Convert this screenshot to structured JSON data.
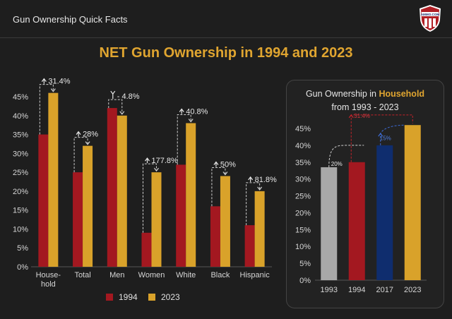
{
  "header": {
    "title": "Gun Ownership Quick Facts",
    "logo_text": "AMMO.COM"
  },
  "colors": {
    "c1994": "#a31820",
    "c2023": "#d9a22a",
    "c1993": "#a8a8a8",
    "c2017": "#0f2d6e",
    "accent": "#e0a530"
  },
  "chart_data": [
    {
      "type": "bar",
      "title": "NET Gun Ownership in 1994 and 2023",
      "categories": [
        "House-\nhold",
        "Total",
        "Men",
        "Women",
        "White",
        "Black",
        "Hispanic"
      ],
      "series": [
        {
          "name": "1994",
          "values": [
            35,
            25,
            42,
            9,
            27,
            16,
            11
          ]
        },
        {
          "name": "2023",
          "values": [
            46,
            32,
            40,
            25,
            38,
            24,
            20
          ]
        }
      ],
      "annotations": [
        "31.4%",
        "28%",
        "- 4.8%",
        "177.8%",
        "40.8%",
        "50%",
        "81.8%"
      ],
      "annotation_arrows": [
        "up",
        "up",
        "down",
        "up",
        "up",
        "up",
        "up"
      ],
      "ylim": [
        0,
        45
      ],
      "yticks": [
        "0%",
        "5%",
        "10%",
        "15%",
        "20%",
        "25%",
        "30%",
        "35%",
        "40%",
        "45%"
      ],
      "legend": [
        "1994",
        "2023"
      ],
      "legend_position": "bottom"
    },
    {
      "type": "bar",
      "title": "Gun Ownership in Household",
      "title_prefix": "Gun Ownership in ",
      "title_highlight": "Household",
      "subtitle": "from 1993 - 2023",
      "categories": [
        "1993",
        "1994",
        "2017",
        "2023"
      ],
      "values": [
        33.5,
        35,
        40,
        46
      ],
      "annotations": [
        "20%",
        "31.4%",
        "15%"
      ],
      "ylim": [
        0,
        45
      ],
      "yticks": [
        "0%",
        "5%",
        "10%",
        "15%",
        "20%",
        "25%",
        "30%",
        "35%",
        "40%",
        "45%"
      ]
    }
  ]
}
